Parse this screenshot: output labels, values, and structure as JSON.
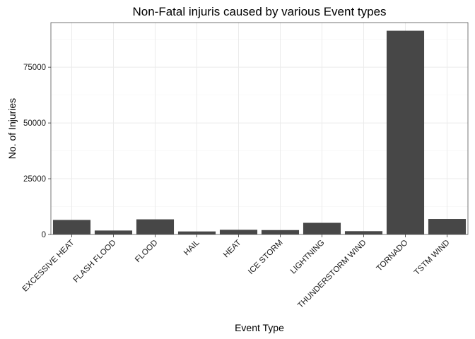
{
  "chart_data": {
    "type": "bar",
    "title": "Non-Fatal injuris caused by various Event types",
    "xlabel": "Event Type",
    "ylabel": "No. of Injuries",
    "categories": [
      "EXCESSIVE HEAT",
      "FLASH FLOOD",
      "FLOOD",
      "HAIL",
      "HEAT",
      "ICE STORM",
      "LIGHTNING",
      "THUNDERSTORM WIND",
      "TORNADO",
      "TSTM WIND"
    ],
    "values": [
      6525,
      1777,
      6789,
      1361,
      2100,
      1975,
      5230,
      1488,
      91346,
      6957
    ],
    "ylim": [
      0,
      95000
    ],
    "yticks": [
      0,
      25000,
      50000,
      75000
    ],
    "ytick_labels": [
      "0",
      "25000",
      "50000",
      "75000"
    ],
    "grid": true,
    "legend": "none",
    "bar_color": "#474747"
  }
}
